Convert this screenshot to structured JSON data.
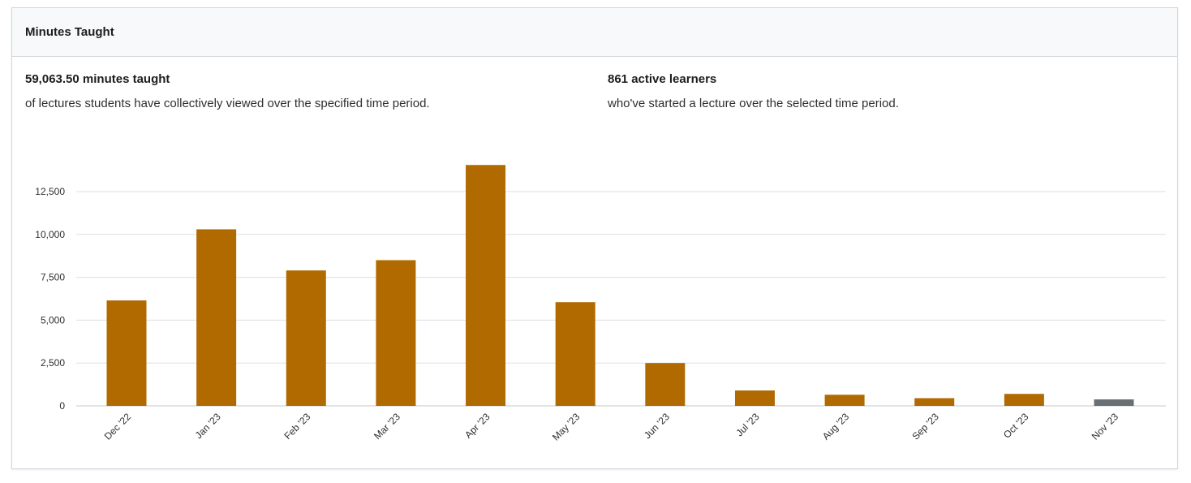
{
  "card": {
    "title": "Minutes Taught"
  },
  "stats": [
    {
      "value": "59,063.50 minutes taught",
      "description": "of lectures students have collectively viewed over the specified time period."
    },
    {
      "value": "861 active learners",
      "description": "who've started a lecture over the selected time period."
    }
  ],
  "chart_data": {
    "type": "bar",
    "categories": [
      "Dec '22",
      "Jan '23",
      "Feb '23",
      "Mar '23",
      "Apr '23",
      "May '23",
      "Jun '23",
      "Jul '23",
      "Aug '23",
      "Sep '23",
      "Oct '23",
      "Nov '23"
    ],
    "values": [
      6150,
      10300,
      7900,
      8500,
      14050,
      6050,
      2500,
      900,
      650,
      450,
      700,
      380
    ],
    "bar_colors": [
      "#b06a00",
      "#b06a00",
      "#b06a00",
      "#b06a00",
      "#b06a00",
      "#b06a00",
      "#b06a00",
      "#b06a00",
      "#b06a00",
      "#b06a00",
      "#b06a00",
      "#6a6f73"
    ],
    "yticks": [
      0,
      2500,
      5000,
      7500,
      10000,
      12500
    ],
    "ytick_labels": [
      "0",
      "2,500",
      "5,000",
      "7,500",
      "10,000",
      "12,500"
    ],
    "ylim": [
      0,
      14500
    ],
    "grid": true,
    "title": "",
    "xlabel": "",
    "ylabel": ""
  }
}
